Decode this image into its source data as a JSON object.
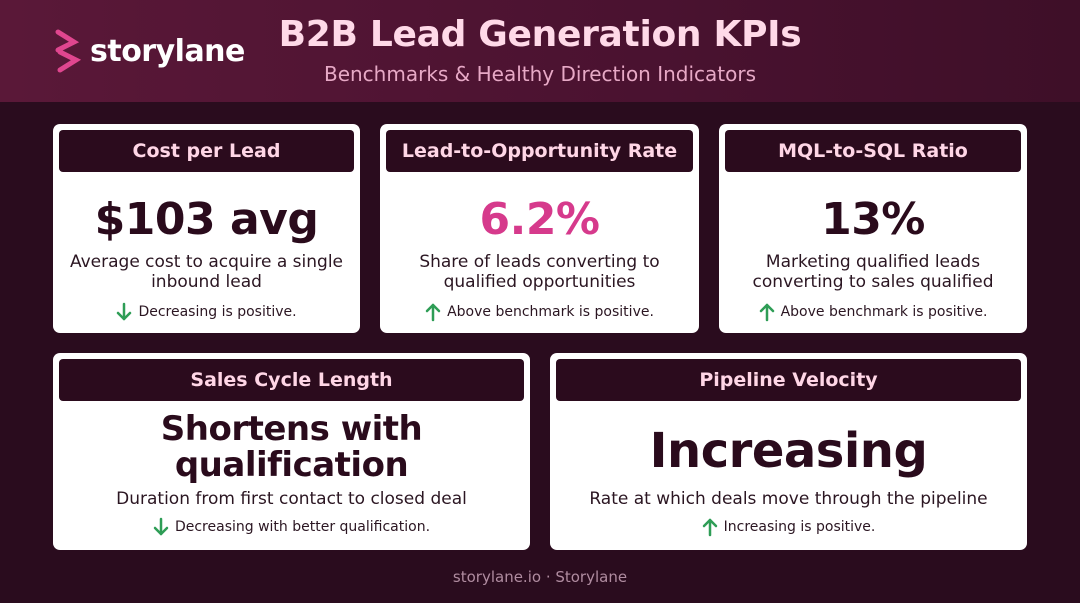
{
  "header": {
    "brand": "storylane",
    "title": "B2B Lead Generation KPIs",
    "subtitle": "Benchmarks & Healthy Direction Indicators"
  },
  "colors": {
    "header_bg": "#4a1230",
    "page_bg": "#2a0c1e",
    "card_head_bg": "#2b0b1d",
    "accent_pink": "#d63a8c",
    "arrow_green": "#2e9d56"
  },
  "cards": [
    {
      "title": "Cost per Lead",
      "value": "$103 avg",
      "description": "Average cost to acquire a single inbound lead",
      "note": "Decreasing is positive.",
      "direction_icon": "arrow-down-icon"
    },
    {
      "title": "Lead-to-Opportunity Rate",
      "value": "6.2%",
      "description": "Share of leads converting to qualified opportunities",
      "note": "Above benchmark is positive.",
      "direction_icon": "arrow-up-icon"
    },
    {
      "title": "MQL-to-SQL Ratio",
      "value": "13%",
      "description": "Marketing qualified leads converting to sales qualified",
      "note": "Above benchmark is positive.",
      "direction_icon": "arrow-up-icon"
    },
    {
      "title": "Sales Cycle Length",
      "value": "Shortens with qualification",
      "description": "Duration from first contact to closed deal",
      "note": "Decreasing with better qualification.",
      "direction_icon": "arrow-down-icon"
    },
    {
      "title": "Pipeline Velocity",
      "value": "Increasing",
      "description": "Rate at which deals move through the pipeline",
      "note": "Increasing is positive.",
      "direction_icon": "arrow-up-icon"
    }
  ],
  "footer": "storylane.io · Storylane"
}
